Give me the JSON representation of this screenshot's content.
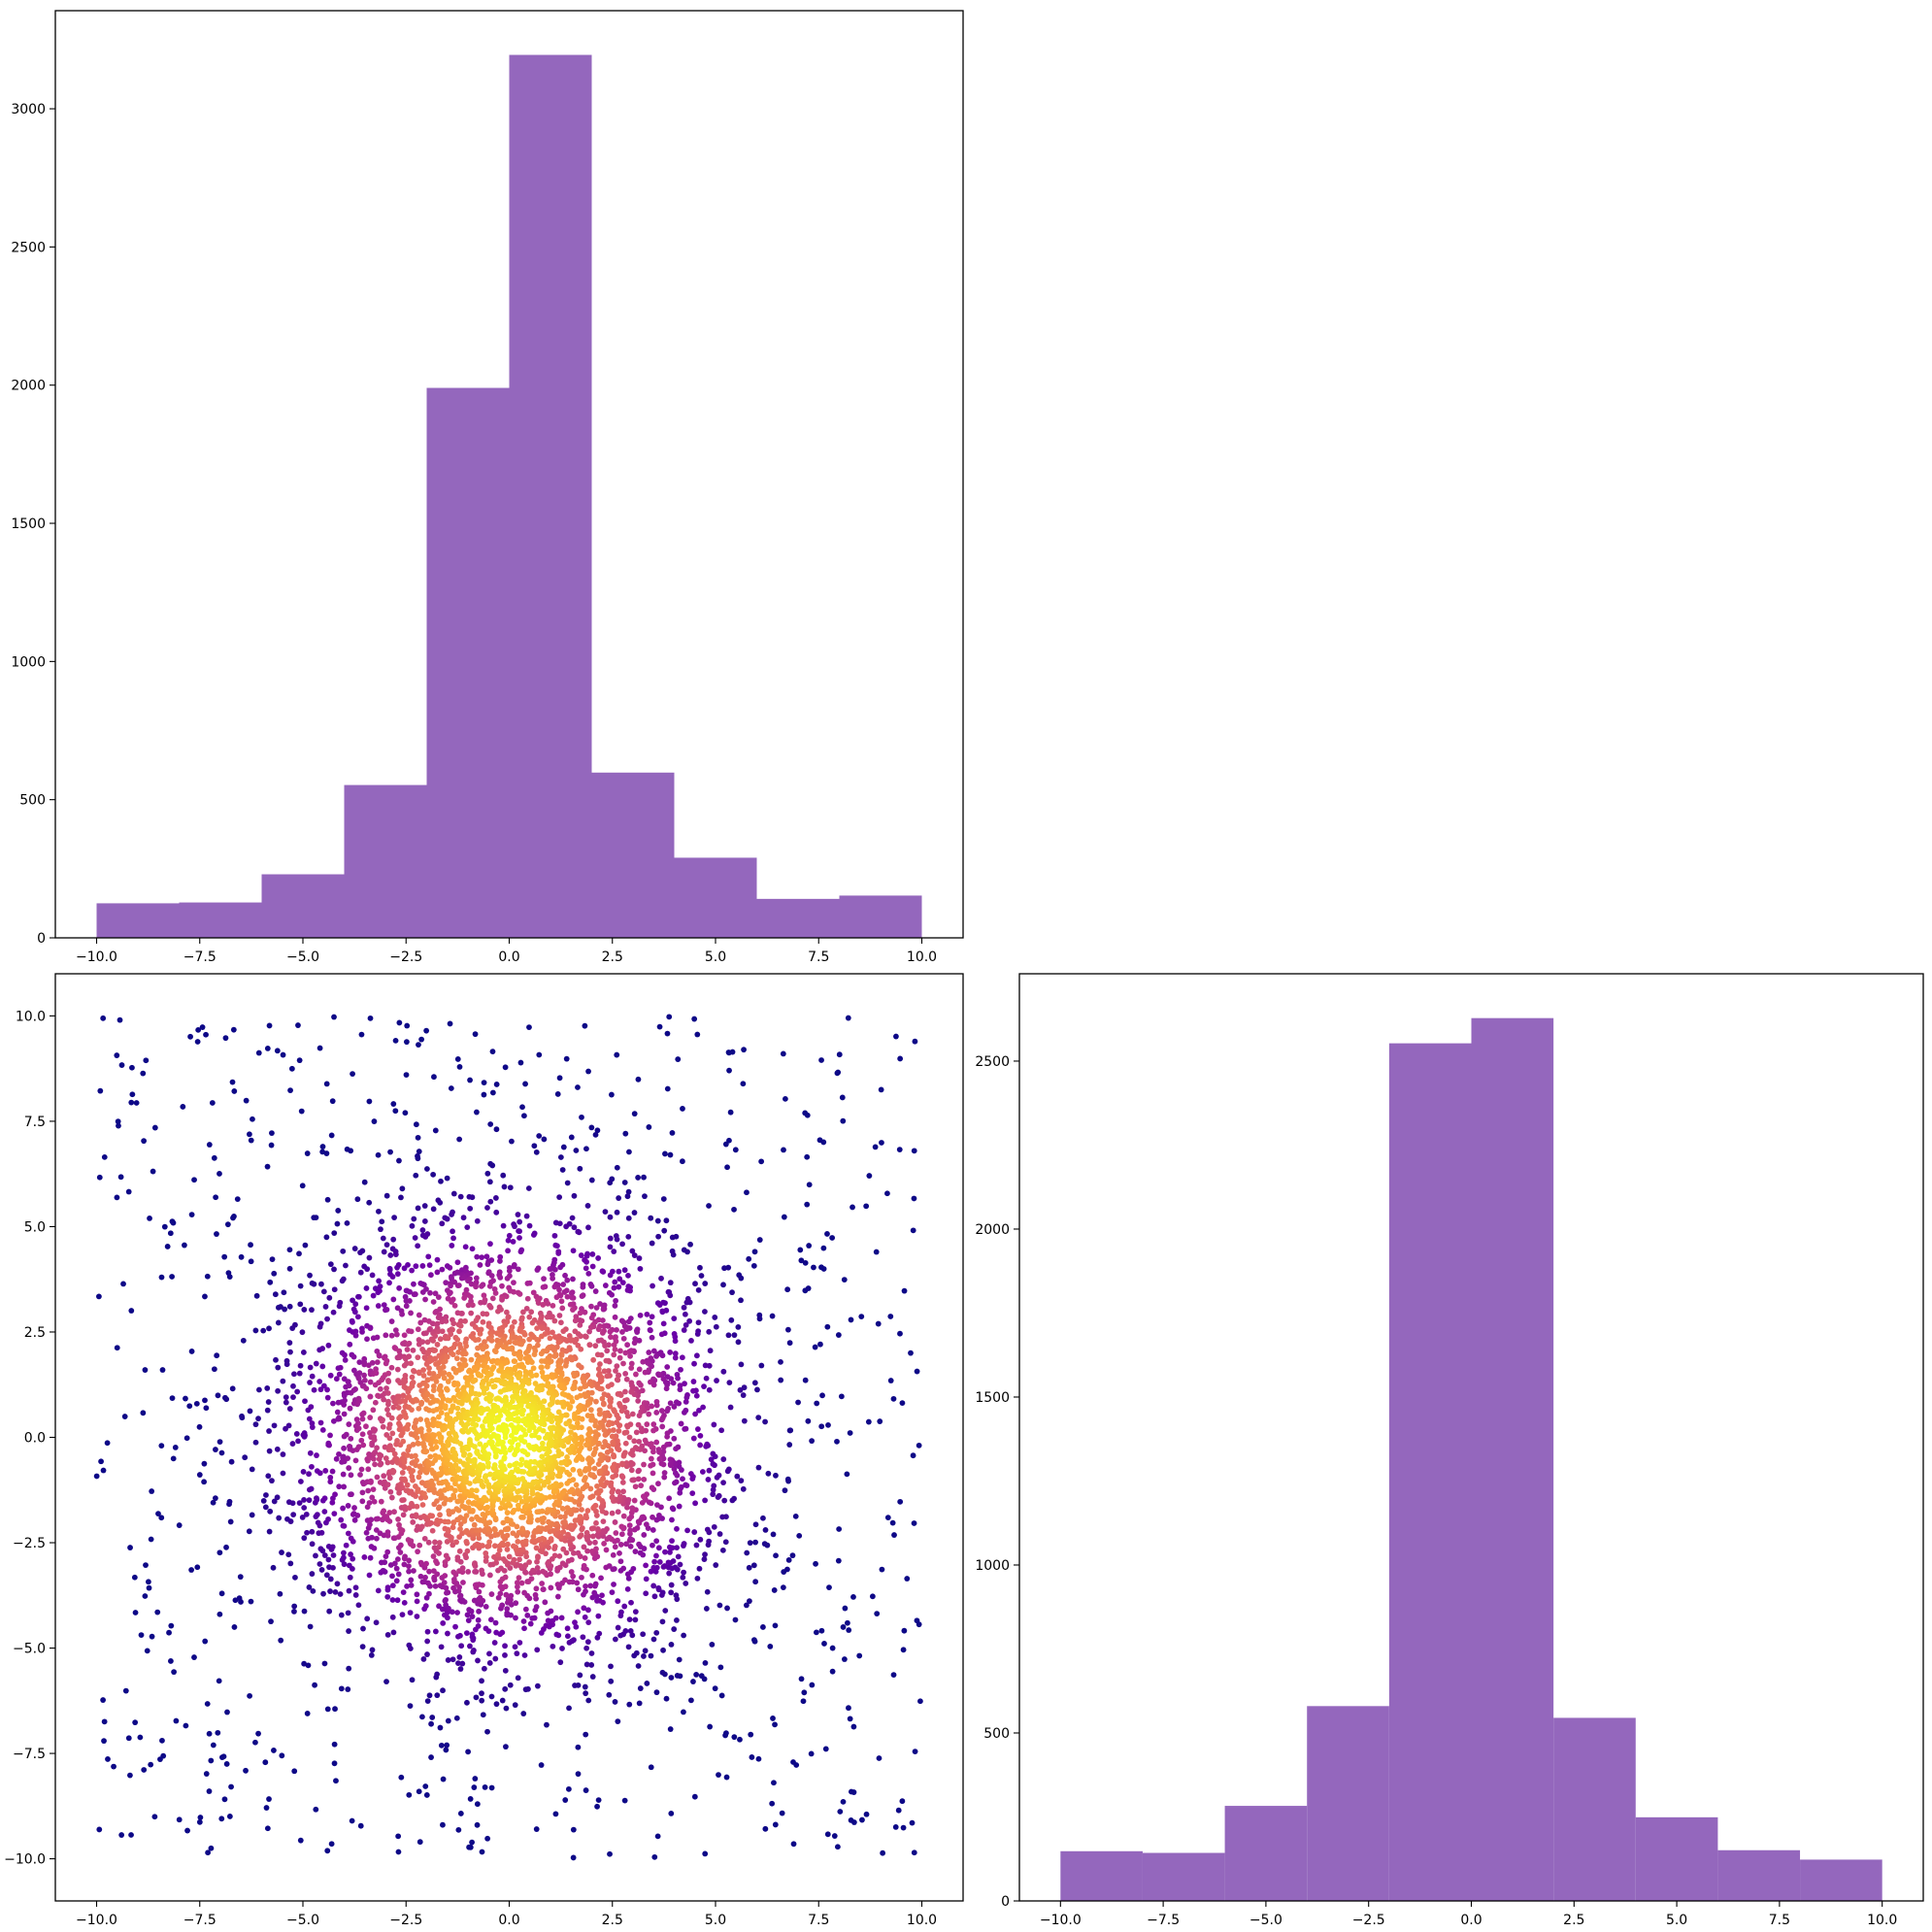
{
  "chart_data": [
    {
      "type": "bar",
      "panel": "top-left",
      "title": "",
      "xlabel": "",
      "ylabel": "",
      "bin_edges": [
        -10,
        -8,
        -6,
        -4,
        -2,
        0,
        2,
        4,
        6,
        8,
        10
      ],
      "values": [
        125,
        128,
        230,
        553,
        1990,
        3195,
        598,
        290,
        141,
        153
      ],
      "xlim": [
        -11,
        11
      ],
      "ylim": [
        0,
        3355
      ],
      "xticks": [
        -10,
        -7.5,
        -5,
        -2.5,
        0,
        2.5,
        5,
        7.5,
        10
      ],
      "xtick_labels": [
        "−10.0",
        "−7.5",
        "−5.0",
        "−2.5",
        "0.0",
        "2.5",
        "5.0",
        "7.5",
        "10.0"
      ],
      "yticks": [
        0,
        500,
        1000,
        1500,
        2000,
        2500,
        3000
      ],
      "ytick_labels": [
        "0",
        "500",
        "1000",
        "1500",
        "2000",
        "2500",
        "3000"
      ],
      "color": "#9467bd",
      "grid": false
    },
    {
      "type": "scatter",
      "panel": "bottom-left",
      "title": "",
      "xlabel": "",
      "ylabel": "",
      "n_points": 5000,
      "distribution": "dense Gaussian cluster centred at (0, 0) plus uniformly scattered points over [-10, 10] x [-10, 10]",
      "color_encoding": "point density (plasma colormap)",
      "colormap": [
        "#0d0887",
        "#6a00a8",
        "#b12a90",
        "#e16462",
        "#fca636",
        "#f0f921"
      ],
      "xlim": [
        -11,
        11
      ],
      "ylim": [
        -11,
        11
      ],
      "xticks": [
        -10,
        -7.5,
        -5,
        -2.5,
        0,
        2.5,
        5,
        7.5,
        10
      ],
      "xtick_labels": [
        "−10.0",
        "−7.5",
        "−5.0",
        "−2.5",
        "0.0",
        "2.5",
        "5.0",
        "7.5",
        "10.0"
      ],
      "yticks": [
        -10,
        -7.5,
        -5,
        -2.5,
        0,
        2.5,
        5,
        7.5,
        10
      ],
      "ytick_labels": [
        "−10.0",
        "−7.5",
        "−5.0",
        "−2.5",
        "0.0",
        "2.5",
        "5.0",
        "7.5",
        "10.0"
      ],
      "grid": false
    },
    {
      "type": "bar",
      "panel": "bottom-right",
      "title": "",
      "xlabel": "",
      "ylabel": "",
      "bin_edges": [
        -10,
        -8,
        -6,
        -4,
        -2,
        0,
        2,
        4,
        6,
        8,
        10
      ],
      "values": [
        148,
        143,
        283,
        580,
        2553,
        2628,
        545,
        249,
        151,
        123
      ],
      "xlim": [
        -11,
        11
      ],
      "ylim": [
        0,
        2760
      ],
      "xticks": [
        -10,
        -7.5,
        -5,
        -2.5,
        0,
        2.5,
        5,
        7.5,
        10
      ],
      "xtick_labels": [
        "−10.0",
        "−7.5",
        "−5.0",
        "−2.5",
        "0.0",
        "2.5",
        "5.0",
        "7.5",
        "10.0"
      ],
      "yticks": [
        0,
        500,
        1000,
        1500,
        2000,
        2500
      ],
      "ytick_labels": [
        "0",
        "500",
        "1000",
        "1500",
        "2000",
        "2500"
      ],
      "color": "#9467bd",
      "grid": false
    }
  ]
}
